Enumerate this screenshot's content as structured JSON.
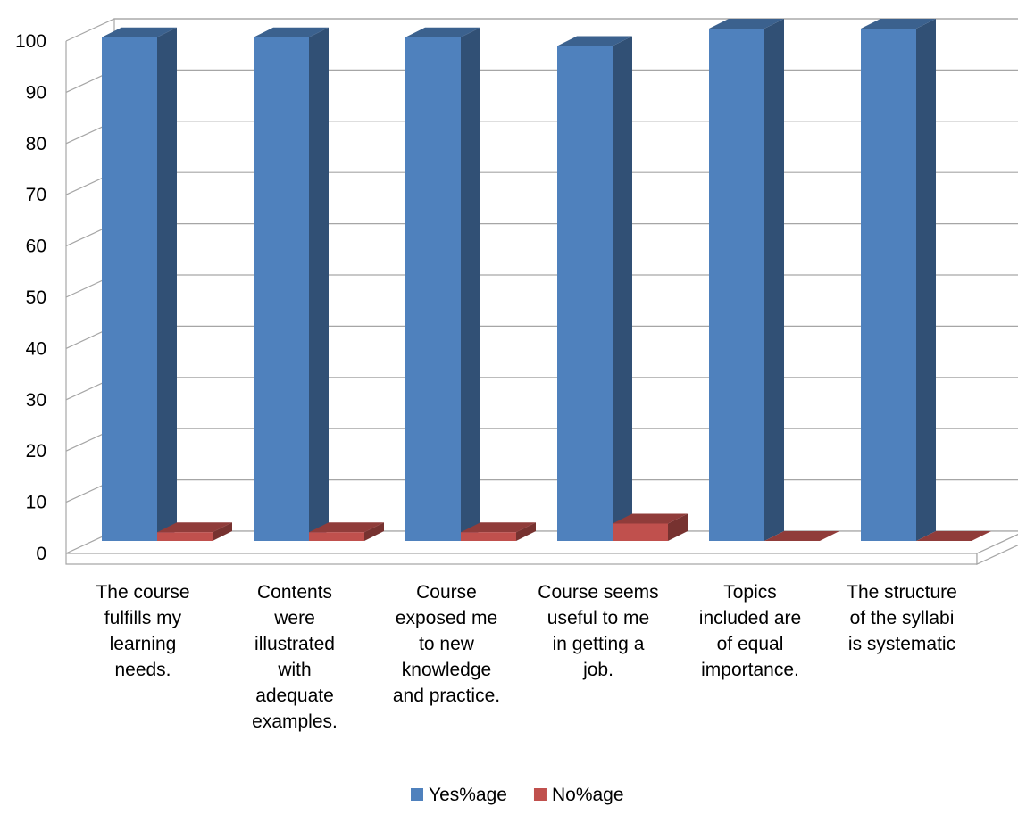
{
  "chart_data": {
    "type": "bar",
    "style": "3d-clustered-column",
    "categories": [
      [
        "The course",
        "fulfills my",
        "learning",
        "needs."
      ],
      [
        "Contents",
        "were",
        "illustrated",
        "with",
        "adequate",
        "examples."
      ],
      [
        "Course",
        "exposed me",
        "to new",
        "knowledge",
        "and practice."
      ],
      [
        "Course seems",
        "useful to me",
        "in getting a",
        "job."
      ],
      [
        "Topics",
        "included are",
        "of equal",
        "importance."
      ],
      [
        "The structure",
        "of the syllabi",
        "is systematic"
      ]
    ],
    "series": [
      {
        "name": "Yes%age",
        "color": "#4F81BD",
        "values": [
          98.3,
          98.3,
          98.3,
          96.6,
          100,
          100
        ]
      },
      {
        "name": "No%age",
        "color": "#C0504D",
        "values": [
          1.7,
          1.7,
          1.7,
          3.4,
          0,
          0
        ]
      }
    ],
    "yticks": [
      "0",
      "10",
      "20",
      "30",
      "40",
      "50",
      "60",
      "70",
      "80",
      "90",
      "100"
    ],
    "ylim": [
      0,
      100
    ],
    "grid": true,
    "legend_position": "bottom"
  }
}
